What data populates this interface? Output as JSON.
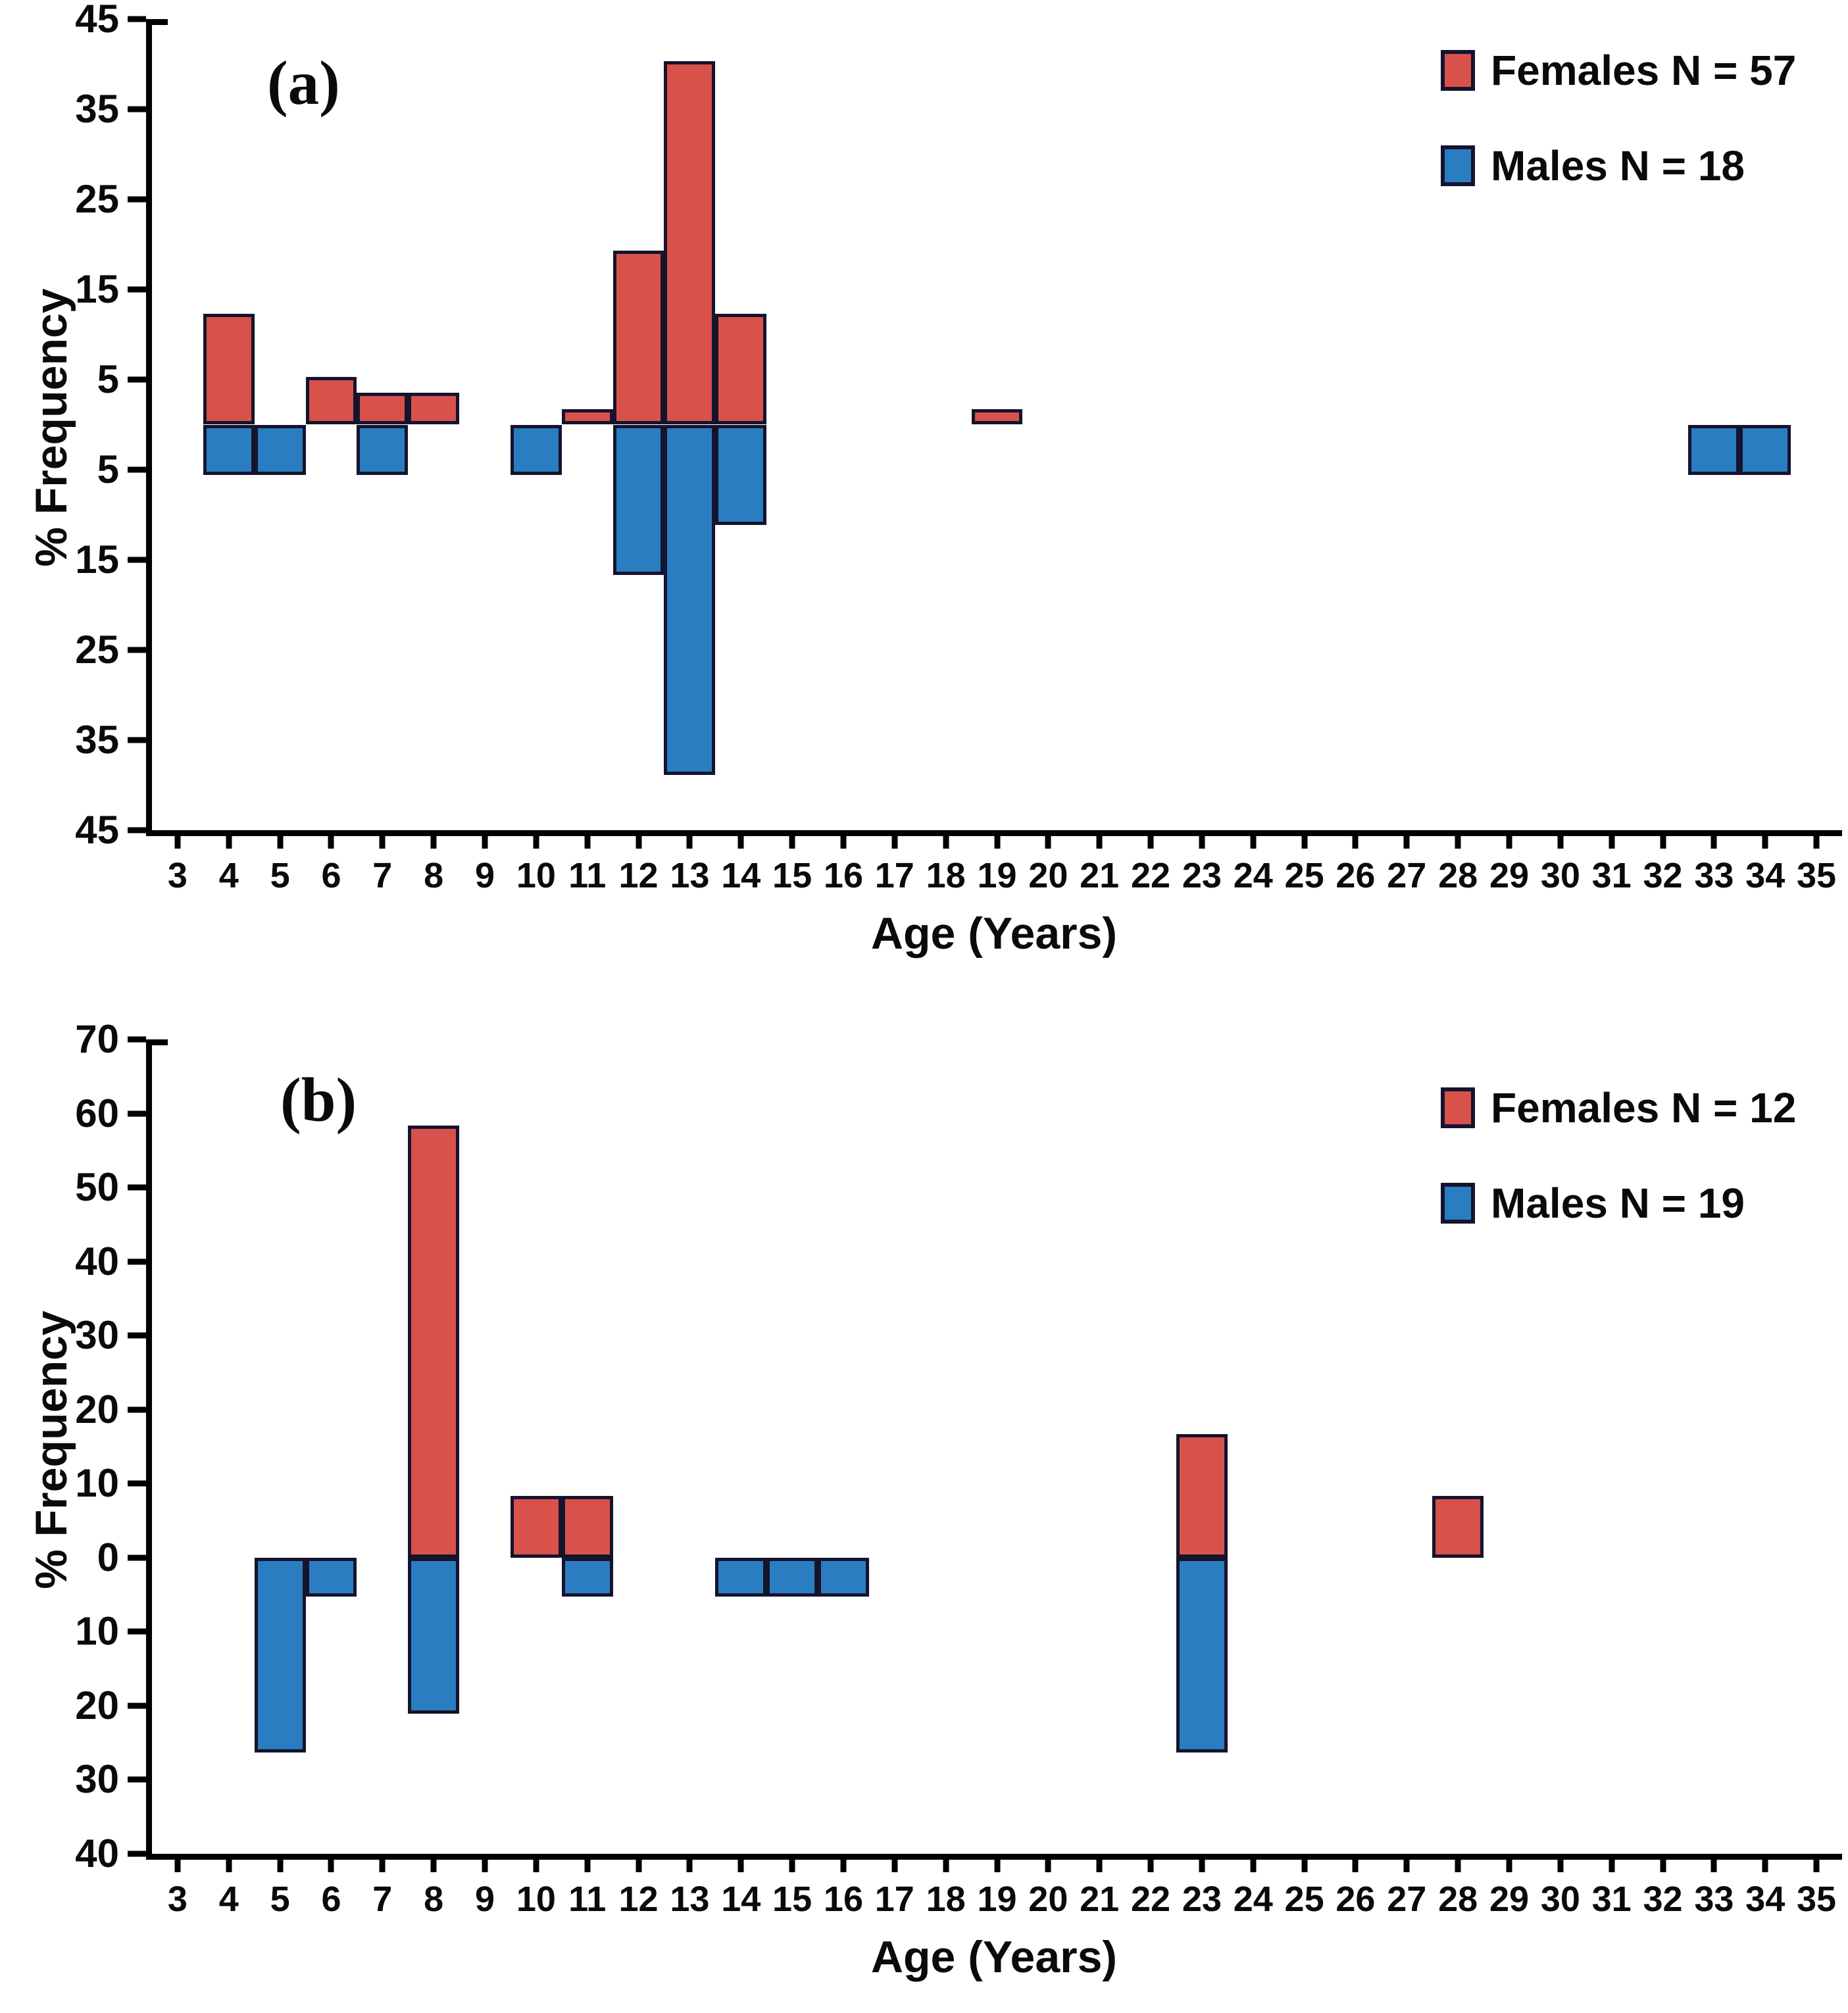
{
  "colors": {
    "female": "#d9514b",
    "male": "#2b7dc2",
    "bar_border": "#14142e",
    "axis": "#000000",
    "text": "#0a0a0a",
    "background": "#ffffff"
  },
  "chart_data": [
    {
      "panel_label": "(a)",
      "type": "bar",
      "subtype": "diverging-vertical-age-pyramid",
      "xlabel": "Age (Years)",
      "ylabel": "% Frequency",
      "x_tick_min": 3,
      "x_tick_max": 35,
      "ylim": [
        -45,
        45
      ],
      "yticks": [
        45,
        35,
        25,
        15,
        5,
        -5,
        -15,
        -25,
        -35,
        -45
      ],
      "ytick_labels": [
        "45",
        "35",
        "25",
        "15",
        "5",
        "5",
        "15",
        "25",
        "35",
        "45"
      ],
      "grid": false,
      "legend_position": "top-right",
      "legend": [
        {
          "name": "Females N = 57",
          "color": "#d9514b"
        },
        {
          "name": "Males N = 18",
          "color": "#2b7dc2"
        }
      ],
      "series": [
        {
          "name": "Females",
          "direction": "up",
          "color": "#d9514b",
          "points": [
            {
              "age": 4,
              "pct": 12.28
            },
            {
              "age": 6,
              "pct": 5.26
            },
            {
              "age": 7,
              "pct": 3.51
            },
            {
              "age": 8,
              "pct": 3.51
            },
            {
              "age": 11,
              "pct": 1.75
            },
            {
              "age": 12,
              "pct": 19.3
            },
            {
              "age": 13,
              "pct": 40.35
            },
            {
              "age": 14,
              "pct": 12.28
            },
            {
              "age": 19,
              "pct": 1.75
            }
          ]
        },
        {
          "name": "Males",
          "direction": "down",
          "color": "#2b7dc2",
          "points": [
            {
              "age": 4,
              "pct": 5.56
            },
            {
              "age": 5,
              "pct": 5.56
            },
            {
              "age": 7,
              "pct": 5.56
            },
            {
              "age": 10,
              "pct": 5.56
            },
            {
              "age": 12,
              "pct": 16.67
            },
            {
              "age": 13,
              "pct": 38.89
            },
            {
              "age": 14,
              "pct": 11.11
            },
            {
              "age": 33,
              "pct": 5.56
            },
            {
              "age": 34,
              "pct": 5.56
            }
          ]
        }
      ]
    },
    {
      "panel_label": "(b)",
      "type": "bar",
      "subtype": "diverging-vertical-age-pyramid",
      "xlabel": "Age (Years)",
      "ylabel": "% Frequency",
      "x_tick_min": 3,
      "x_tick_max": 35,
      "ylim": [
        -40,
        70
      ],
      "yticks": [
        70,
        60,
        50,
        40,
        30,
        20,
        10,
        0,
        -10,
        -20,
        -30,
        -40
      ],
      "ytick_labels": [
        "70",
        "60",
        "50",
        "40",
        "30",
        "20",
        "10",
        "0",
        "10",
        "20",
        "30",
        "40"
      ],
      "grid": false,
      "legend_position": "top-right",
      "legend": [
        {
          "name": "Females N = 12",
          "color": "#d9514b"
        },
        {
          "name": "Males N = 19",
          "color": "#2b7dc2"
        }
      ],
      "series": [
        {
          "name": "Females",
          "direction": "up",
          "color": "#d9514b",
          "points": [
            {
              "age": 8,
              "pct": 58.33
            },
            {
              "age": 10,
              "pct": 8.33
            },
            {
              "age": 11,
              "pct": 8.33
            },
            {
              "age": 23,
              "pct": 16.67
            },
            {
              "age": 28,
              "pct": 8.33
            }
          ]
        },
        {
          "name": "Males",
          "direction": "down",
          "color": "#2b7dc2",
          "points": [
            {
              "age": 5,
              "pct": 26.32
            },
            {
              "age": 6,
              "pct": 5.26
            },
            {
              "age": 8,
              "pct": 21.05
            },
            {
              "age": 11,
              "pct": 5.26
            },
            {
              "age": 14,
              "pct": 5.26
            },
            {
              "age": 15,
              "pct": 5.26
            },
            {
              "age": 16,
              "pct": 5.26
            },
            {
              "age": 23,
              "pct": 26.32
            }
          ]
        }
      ]
    }
  ]
}
